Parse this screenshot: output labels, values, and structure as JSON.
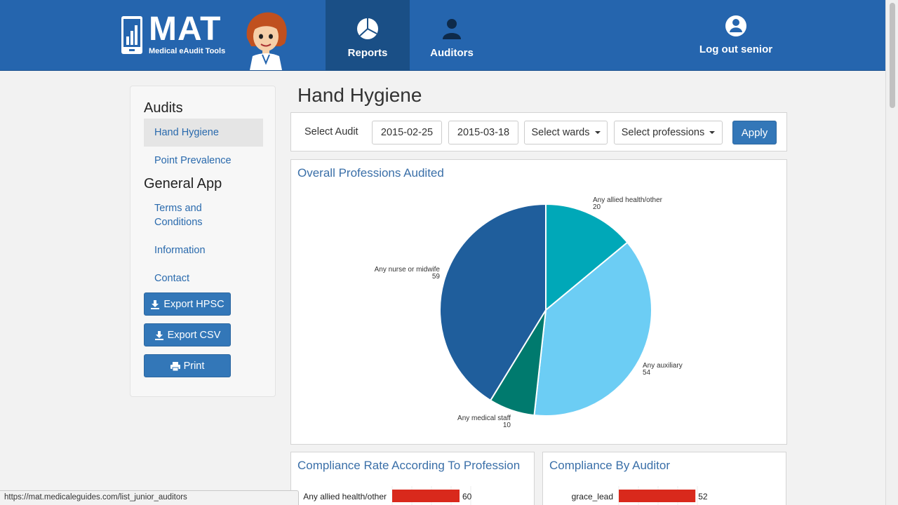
{
  "brand": {
    "title": "MAT",
    "subtitle": "Medical eAudit Tools"
  },
  "nav": {
    "reports_label": "Reports",
    "auditors_label": "Auditors",
    "logout_label": "Log out senior"
  },
  "sidebar": {
    "audits_heading": "Audits",
    "audit_items": [
      {
        "label": "Hand Hygiene",
        "active": true
      },
      {
        "label": "Point Prevalence",
        "active": false
      }
    ],
    "general_heading": "General App",
    "general_items": [
      {
        "label": "Terms and"
      },
      {
        "label": "Conditions"
      },
      {
        "label": "Information"
      },
      {
        "label": "Contact"
      }
    ],
    "buttons": {
      "export_hpsc": "Export HPSC",
      "export_csv": "Export CSV",
      "print": "Print"
    }
  },
  "main": {
    "title": "Hand Hygiene",
    "filters": {
      "label": "Select Audit",
      "start_date": "2015-02-25",
      "end_date": "2015-03-18",
      "wards": "Select wards",
      "professions": "Select professions",
      "apply": "Apply"
    }
  },
  "colors": {
    "navbar": "#2565ae",
    "nav_active": "#1a4f86",
    "button": "#3377b8",
    "link": "#2a6aad",
    "bar": "#d9291c"
  },
  "chart_data": [
    {
      "type": "pie",
      "title": "Overall Professions Audited",
      "slices": [
        {
          "label": "Any allied health/other",
          "value": 20,
          "color": "#00a8b8"
        },
        {
          "label": "Any auxiliary",
          "value": 54,
          "color": "#6ccdf4"
        },
        {
          "label": "Any medical staff",
          "value": 10,
          "color": "#007a6e"
        },
        {
          "label": "Any nurse or midwife",
          "value": 59,
          "color": "#1f5e9c"
        }
      ]
    },
    {
      "type": "bar",
      "title": "Compliance Rate According To Profession",
      "categories": [
        "Any allied health/other"
      ],
      "values": [
        60
      ]
    },
    {
      "type": "bar",
      "title": "Compliance By Auditor",
      "categories": [
        "grace_lead"
      ],
      "values": [
        52
      ]
    }
  ],
  "status_url": "https://mat.medicaleguides.com/list_junior_auditors"
}
